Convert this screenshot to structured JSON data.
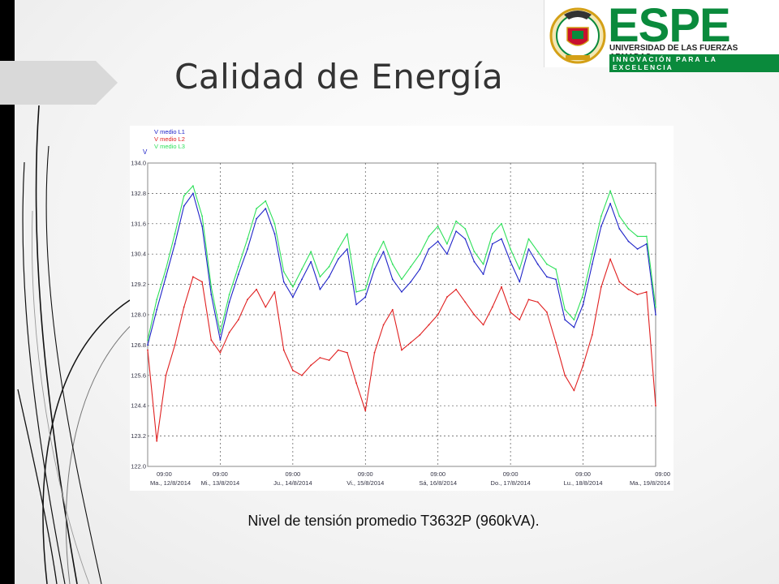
{
  "slide": {
    "title": "Calidad de Energía",
    "caption": "Nivel de tensión promedio T3632P (960kVA)."
  },
  "logo": {
    "brand": "ESPE",
    "line1": "UNIVERSIDAD DE LAS FUERZAS ARMADAS",
    "line2": "INNOVACIÓN PARA LA EXCELENCIA",
    "colors": {
      "green": "#0a8a3c",
      "red": "#c8102e",
      "gold": "#d4a017"
    }
  },
  "chart_data": {
    "type": "line",
    "title": "",
    "ylabel": "V",
    "ylim": [
      122.0,
      134.0
    ],
    "yticks": [
      "134.0",
      "132.8",
      "131.6",
      "130.4",
      "129.2",
      "128.0",
      "126.8",
      "125.6",
      "124.4",
      "123.2",
      "122.0"
    ],
    "xrange": [
      0,
      168
    ],
    "x_tick_hours": [
      0,
      24,
      48,
      72,
      96,
      120,
      144,
      168
    ],
    "x_ticks": [
      {
        "time": "09:00",
        "date": "Ma., 12/8/2014"
      },
      {
        "time": "09:00",
        "date": "Mi., 13/8/2014"
      },
      {
        "time": "09:00",
        "date": "Ju., 14/8/2014"
      },
      {
        "time": "09:00",
        "date": "Vi., 15/8/2014"
      },
      {
        "time": "09:00",
        "date": "Sá, 16/8/2014"
      },
      {
        "time": "09:00",
        "date": "Do., 17/8/2014"
      },
      {
        "time": "09:00",
        "date": "Lu., 18/8/2014"
      },
      {
        "time": "09:00",
        "date": "Ma., 19/8/2014"
      }
    ],
    "grid": true,
    "legend_position": "top-left",
    "series": [
      {
        "name": "V medio L1",
        "color": "#1f24c8",
        "x": [
          0,
          3,
          6,
          9,
          12,
          15,
          18,
          21,
          24,
          27,
          30,
          33,
          36,
          39,
          42,
          45,
          48,
          51,
          54,
          57,
          60,
          63,
          66,
          69,
          72,
          75,
          78,
          81,
          84,
          87,
          90,
          93,
          96,
          99,
          102,
          105,
          108,
          111,
          114,
          117,
          120,
          123,
          126,
          129,
          132,
          135,
          138,
          141,
          144,
          147,
          150,
          153,
          156,
          159,
          162,
          165,
          168
        ],
        "values": [
          126.8,
          128.2,
          129.5,
          130.8,
          132.3,
          132.8,
          131.5,
          128.8,
          127.0,
          128.5,
          129.6,
          130.6,
          131.8,
          132.2,
          131.2,
          129.3,
          128.7,
          129.4,
          130.1,
          129.0,
          129.5,
          130.2,
          130.6,
          128.4,
          128.7,
          129.8,
          130.5,
          129.4,
          128.9,
          129.3,
          129.8,
          130.6,
          130.9,
          130.4,
          131.3,
          131.0,
          130.1,
          129.6,
          130.8,
          131.0,
          130.1,
          129.3,
          130.6,
          130.0,
          129.5,
          129.4,
          127.8,
          127.5,
          128.4,
          130.0,
          131.5,
          132.4,
          131.4,
          130.9,
          130.6,
          130.8,
          128.0
        ]
      },
      {
        "name": "V medio L2",
        "color": "#e02020",
        "x": [
          0,
          3,
          6,
          9,
          12,
          15,
          18,
          21,
          24,
          27,
          30,
          33,
          36,
          39,
          42,
          45,
          48,
          51,
          54,
          57,
          60,
          63,
          66,
          69,
          72,
          75,
          78,
          81,
          84,
          87,
          90,
          93,
          96,
          99,
          102,
          105,
          108,
          111,
          114,
          117,
          120,
          123,
          126,
          129,
          132,
          135,
          138,
          141,
          144,
          147,
          150,
          153,
          156,
          159,
          162,
          165,
          168
        ],
        "values": [
          126.6,
          123.0,
          125.6,
          126.8,
          128.3,
          129.5,
          129.3,
          127.0,
          126.5,
          127.3,
          127.8,
          128.6,
          129.0,
          128.3,
          128.9,
          126.6,
          125.8,
          125.6,
          126.0,
          126.3,
          126.2,
          126.6,
          126.5,
          125.3,
          124.2,
          126.5,
          127.6,
          128.2,
          126.6,
          126.9,
          127.2,
          127.6,
          128.0,
          128.7,
          129.0,
          128.5,
          128.0,
          127.6,
          128.3,
          129.1,
          128.1,
          127.8,
          128.6,
          128.5,
          128.1,
          126.9,
          125.6,
          125.0,
          126.0,
          127.2,
          129.1,
          130.2,
          129.3,
          129.0,
          128.8,
          128.9,
          124.4
        ]
      },
      {
        "name": "V medio L3",
        "color": "#2ee05a",
        "x": [
          0,
          3,
          6,
          9,
          12,
          15,
          18,
          21,
          24,
          27,
          30,
          33,
          36,
          39,
          42,
          45,
          48,
          51,
          54,
          57,
          60,
          63,
          66,
          69,
          72,
          75,
          78,
          81,
          84,
          87,
          90,
          93,
          96,
          99,
          102,
          105,
          108,
          111,
          114,
          117,
          120,
          123,
          126,
          129,
          132,
          135,
          138,
          141,
          144,
          147,
          150,
          153,
          156,
          159,
          162,
          165,
          168
        ],
        "values": [
          127.0,
          128.6,
          129.8,
          131.2,
          132.7,
          133.1,
          131.9,
          129.1,
          127.3,
          128.8,
          129.9,
          131.0,
          132.2,
          132.5,
          131.6,
          129.7,
          129.1,
          129.8,
          130.5,
          129.5,
          129.9,
          130.6,
          131.2,
          128.9,
          129.0,
          130.2,
          130.9,
          130.0,
          129.4,
          129.9,
          130.4,
          131.1,
          131.5,
          130.8,
          131.7,
          131.4,
          130.5,
          130.0,
          131.2,
          131.6,
          130.6,
          129.8,
          131.0,
          130.5,
          130.0,
          129.8,
          128.2,
          127.8,
          128.8,
          130.4,
          131.9,
          132.9,
          131.9,
          131.4,
          131.1,
          131.1,
          128.3
        ]
      }
    ]
  }
}
